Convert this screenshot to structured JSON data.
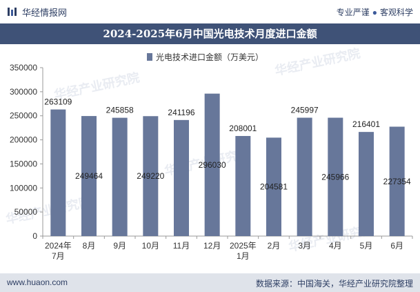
{
  "header": {
    "brand": "华经情报网",
    "slogan_left": "专业严谨",
    "slogan_right": "客观科学"
  },
  "title": "2024-2025年6月中国光电技术月度进口金额",
  "footer": {
    "website": "www.huaon.com",
    "source": "数据来源：中国海关，华经产业研究院整理"
  },
  "watermark": "华经产业研究院",
  "colors": {
    "bar": "#67779a",
    "title_bg": "#3f5277",
    "footer_bg": "#dfe3ea"
  },
  "chart_data": {
    "type": "bar",
    "categories": [
      "2024年\n7月",
      "8月",
      "9月",
      "10月",
      "11月",
      "12月",
      "2025年\n1月",
      "2月",
      "3月",
      "4月",
      "5月",
      "6月"
    ],
    "series": [
      {
        "name": "光电技术进口金额（万美元）",
        "values": [
          263109,
          249464,
          245858,
          249220,
          241196,
          296030,
          208001,
          204581,
          245997,
          245966,
          216401,
          227354
        ]
      }
    ],
    "ylim": [
      0,
      350000
    ],
    "yticks": [
      0,
      50000,
      100000,
      150000,
      200000,
      250000,
      300000,
      350000
    ],
    "legend_position": "top",
    "grid": false
  }
}
